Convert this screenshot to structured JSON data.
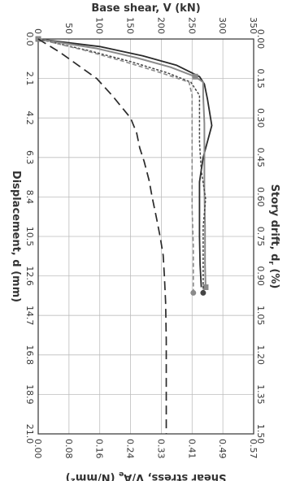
{
  "chart_data": {
    "type": "line",
    "rotation_deg": 90,
    "xlabel": "Displacement, d (mm)",
    "xlabel_top": "Story drift, d",
    "xlabel_top_sub": "r",
    "xlabel_top_unit": " (%)",
    "ylabel": "Base shear, V (kN)",
    "ylabel_right": "Shear stress, V/A",
    "ylabel_right_sub": "e",
    "ylabel_right_unit": " (N/mm",
    "ylabel_right_sup": "2",
    "ylabel_right_close": ")",
    "xlim": [
      0,
      21
    ],
    "ylim": [
      0,
      350
    ],
    "grid": true,
    "x_ticks": [
      "0.0",
      "2.1",
      "4.2",
      "6.3",
      "8.4",
      "10.5",
      "12.6",
      "14.7",
      "16.8",
      "18.9",
      "21.0"
    ],
    "x_top_ticks": [
      "0.00",
      "0.15",
      "0.30",
      "0.45",
      "0.60",
      "0.75",
      "0.90",
      "1.05",
      "1.20",
      "1.35",
      "1.50"
    ],
    "y_ticks": [
      "0",
      "50",
      "100",
      "150",
      "200",
      "250",
      "300",
      "350"
    ],
    "y_right_ticks": [
      "0.00",
      "0.08",
      "0.16",
      "0.24",
      "0.33",
      "0.41",
      "0.49",
      "0.57"
    ],
    "series": [
      {
        "style": "solid-dark",
        "color": "#2a2a2a",
        "x": [
          0,
          0.4,
          0.9,
          1.4,
          2.0,
          2.4,
          3.2,
          4.6,
          6.3,
          7.6,
          9.0,
          10.5,
          12.0,
          13.2
        ],
        "y": [
          0,
          100,
          170,
          225,
          262,
          270,
          275,
          282,
          268,
          262,
          262,
          262,
          263,
          265
        ]
      },
      {
        "style": "solid-gray",
        "color": "#8a8a8a",
        "marker": "square",
        "x": [
          0,
          0.5,
          1.0,
          1.5,
          2.0,
          2.3,
          3.0,
          4.5,
          6.3,
          8.0,
          10.0,
          12.0,
          13.2
        ],
        "y": [
          0,
          95,
          160,
          215,
          255,
          268,
          268,
          270,
          270,
          270,
          271,
          271,
          272
        ]
      },
      {
        "style": "short-dash-dark",
        "color": "#444444",
        "marker": "circle",
        "x": [
          0,
          0.6,
          1.2,
          1.8,
          2.3,
          3.0,
          4.0,
          5.5,
          7.0,
          8.5,
          10.0,
          11.5,
          13.0,
          13.5
        ],
        "y": [
          0,
          80,
          150,
          210,
          248,
          262,
          262,
          262,
          265,
          272,
          268,
          268,
          268,
          268
        ]
      },
      {
        "style": "dash-gray",
        "color": "#8a8a8a",
        "marker": "circle",
        "x": [
          0,
          0.6,
          1.2,
          1.8,
          2.3,
          3.0,
          5.0,
          7.0,
          9.0,
          11.0,
          13.5
        ],
        "y": [
          0,
          75,
          140,
          200,
          245,
          250,
          250,
          250,
          250,
          252,
          252
        ]
      },
      {
        "style": "long-dash",
        "color": "#2a2a2a",
        "x": [
          0,
          0.7,
          1.4,
          2.1,
          3.0,
          3.6,
          4.2,
          5.0,
          5.8,
          6.5,
          7.5,
          8.4,
          9.5,
          10.5,
          11.5,
          12.6,
          14.0,
          16.0,
          18.0,
          21.0
        ],
        "y": [
          0,
          35,
          65,
          95,
          120,
          135,
          150,
          160,
          165,
          172,
          180,
          185,
          192,
          198,
          203,
          205,
          207,
          208,
          208,
          208
        ]
      }
    ]
  }
}
